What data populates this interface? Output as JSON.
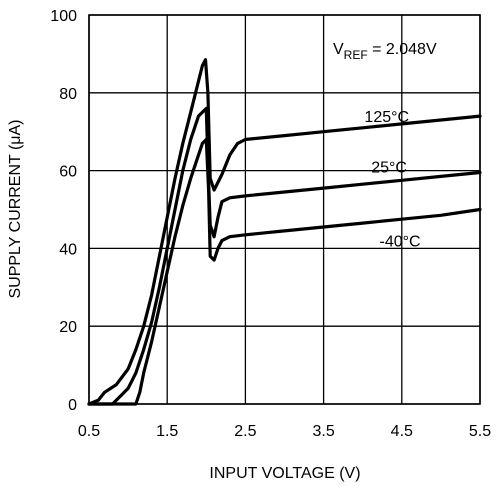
{
  "chart_data": {
    "type": "line",
    "xlabel": "INPUT VOLTAGE (V)",
    "ylabel": "SUPPLY CURRENT (μA)",
    "xlim": [
      0.5,
      5.5
    ],
    "ylim": [
      0,
      100
    ],
    "xticks": [
      "0.5",
      "1.5",
      "2.5",
      "3.5",
      "4.5",
      "5.5"
    ],
    "yticks": [
      "0",
      "20",
      "40",
      "60",
      "80",
      "100"
    ],
    "grid": true,
    "annotation": {
      "prefix": "V",
      "subscript": "REF",
      "suffix": " = 2.048V"
    },
    "series": [
      {
        "name": "125°C",
        "label_at": [
          1.75,
          72.5
        ],
        "x": [
          0.5,
          0.62,
          0.7,
          0.85,
          1.0,
          1.1,
          1.2,
          1.3,
          1.4,
          1.5,
          1.6,
          1.7,
          1.8,
          1.9,
          1.95,
          1.99,
          2.02,
          2.05,
          2.1,
          2.2,
          2.3,
          2.4,
          2.5,
          3.0,
          3.5,
          4.0,
          4.5,
          5.0,
          5.5
        ],
        "y": [
          0,
          1,
          3,
          5,
          9,
          14,
          20,
          28,
          38,
          48,
          58,
          67,
          75,
          83,
          87,
          88.5,
          80,
          58,
          55,
          59,
          64,
          67,
          68,
          69,
          70,
          71,
          72,
          73,
          74
        ]
      },
      {
        "name": "25°C",
        "label_at": [
          1.78,
          59.5
        ],
        "x": [
          0.5,
          0.8,
          0.9,
          1.0,
          1.1,
          1.2,
          1.3,
          1.4,
          1.5,
          1.6,
          1.7,
          1.8,
          1.9,
          2.0,
          2.02,
          2.05,
          2.1,
          2.15,
          2.2,
          2.3,
          2.5,
          3.0,
          3.5,
          4.0,
          4.5,
          5.0,
          5.5
        ],
        "y": [
          0,
          0,
          2,
          4,
          8,
          14,
          21,
          30,
          40,
          50,
          60,
          68,
          74,
          76,
          62,
          46,
          43,
          48,
          52,
          53,
          53.5,
          54.5,
          55.5,
          56.5,
          57.5,
          58.5,
          59.5
        ]
      },
      {
        "name": "-40°C",
        "label_at": [
          1.92,
          40.5
        ],
        "x": [
          0.5,
          1.1,
          1.15,
          1.2,
          1.3,
          1.4,
          1.5,
          1.6,
          1.7,
          1.8,
          1.9,
          1.95,
          2.0,
          2.03,
          2.05,
          2.1,
          2.15,
          2.2,
          2.3,
          2.5,
          3.0,
          3.5,
          4.0,
          4.5,
          5.0,
          5.5
        ],
        "y": [
          0,
          0,
          3,
          8,
          16,
          25,
          34,
          43,
          51,
          58,
          64,
          67,
          68,
          55,
          38,
          37,
          40,
          42,
          43,
          43.5,
          44.5,
          45.5,
          46.5,
          47.5,
          48.5,
          50
        ]
      }
    ]
  }
}
